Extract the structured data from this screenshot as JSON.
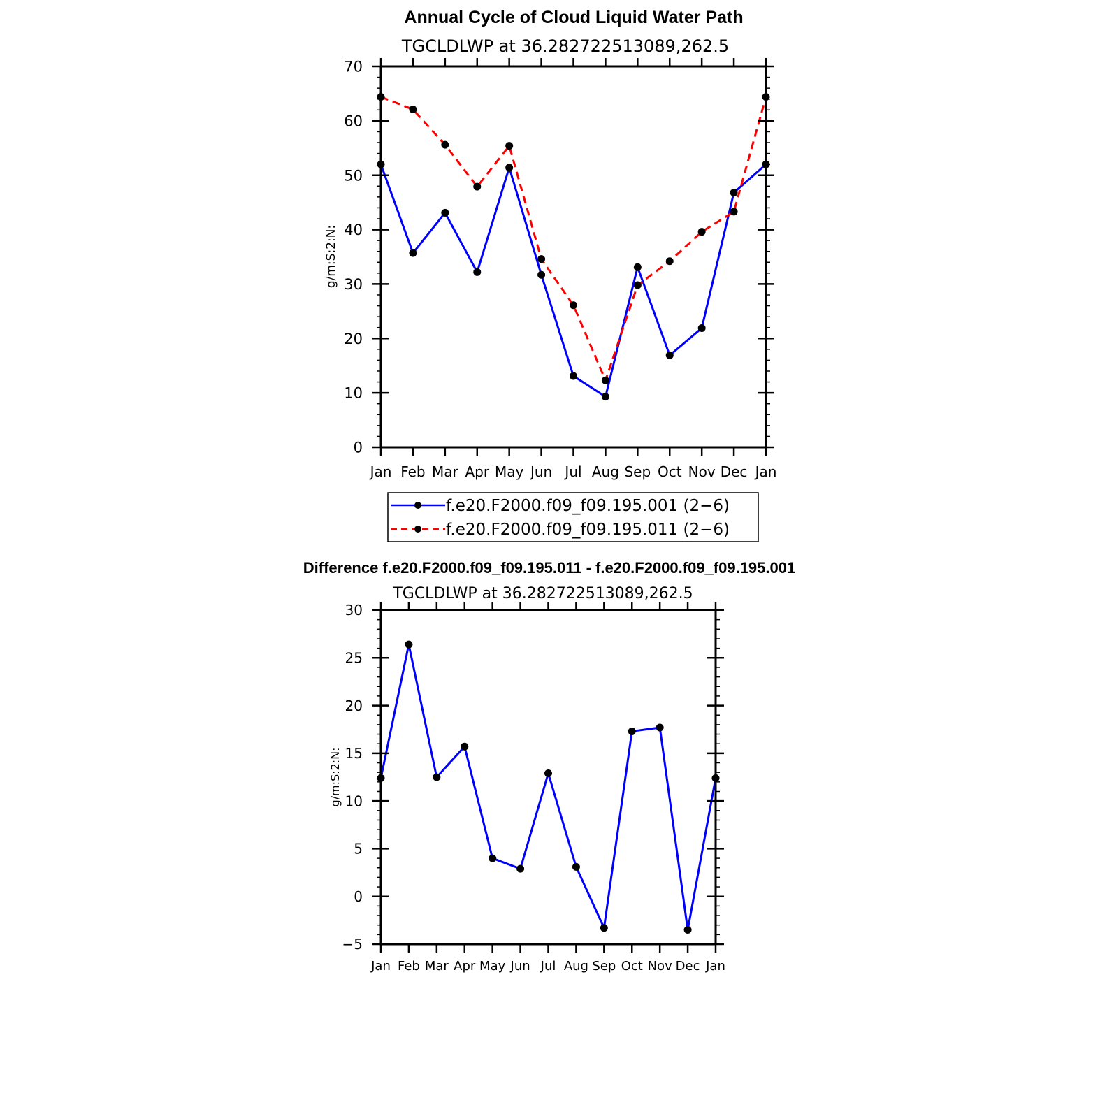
{
  "chart_data": [
    {
      "type": "line",
      "title": "Annual Cycle of Cloud Liquid Water Path",
      "subtitle": "TGCLDLWP at 36.282722513089,262.5",
      "xlabel": "",
      "ylabel": "g/m:S:2:N:",
      "categories": [
        "Jan",
        "Feb",
        "Mar",
        "Apr",
        "May",
        "Jun",
        "Jul",
        "Aug",
        "Sep",
        "Oct",
        "Nov",
        "Dec",
        "Jan"
      ],
      "ylim": [
        0,
        70
      ],
      "yticks": [
        0,
        10,
        20,
        30,
        40,
        50,
        60,
        70
      ],
      "series": [
        {
          "name": "f.e20.F2000.f09_f09.195.001 (2−6)",
          "color": "#0000ff",
          "dash": "solid",
          "values": [
            52.0,
            35.7,
            43.1,
            32.2,
            51.4,
            31.7,
            13.1,
            9.3,
            33.1,
            16.9,
            21.9,
            46.8,
            52.0
          ]
        },
        {
          "name": "f.e20.F2000.f09_f09.195.011 (2−6)",
          "color": "#ff0000",
          "dash": "dashed",
          "values": [
            64.4,
            62.1,
            55.6,
            47.9,
            55.4,
            34.6,
            26.1,
            12.3,
            29.8,
            34.2,
            39.6,
            43.3,
            64.4
          ]
        }
      ],
      "legend_position": "below"
    },
    {
      "type": "line",
      "title": "Difference f.e20.F2000.f09_f09.195.011 - f.e20.F2000.f09_f09.195.001",
      "subtitle": "TGCLDLWP at 36.282722513089,262.5",
      "xlabel": "",
      "ylabel": "g/m:S:2:N:",
      "categories": [
        "Jan",
        "Feb",
        "Mar",
        "Apr",
        "May",
        "Jun",
        "Jul",
        "Aug",
        "Sep",
        "Oct",
        "Nov",
        "Dec",
        "Jan"
      ],
      "ylim": [
        -5,
        30
      ],
      "yticks": [
        -5,
        0,
        5,
        10,
        15,
        20,
        25,
        30
      ],
      "series": [
        {
          "name": "difference",
          "color": "#0000ff",
          "dash": "solid",
          "values": [
            12.4,
            26.4,
            12.5,
            15.7,
            4.0,
            2.9,
            12.9,
            3.1,
            -3.3,
            17.3,
            17.7,
            -3.5,
            12.4
          ]
        }
      ]
    }
  ]
}
